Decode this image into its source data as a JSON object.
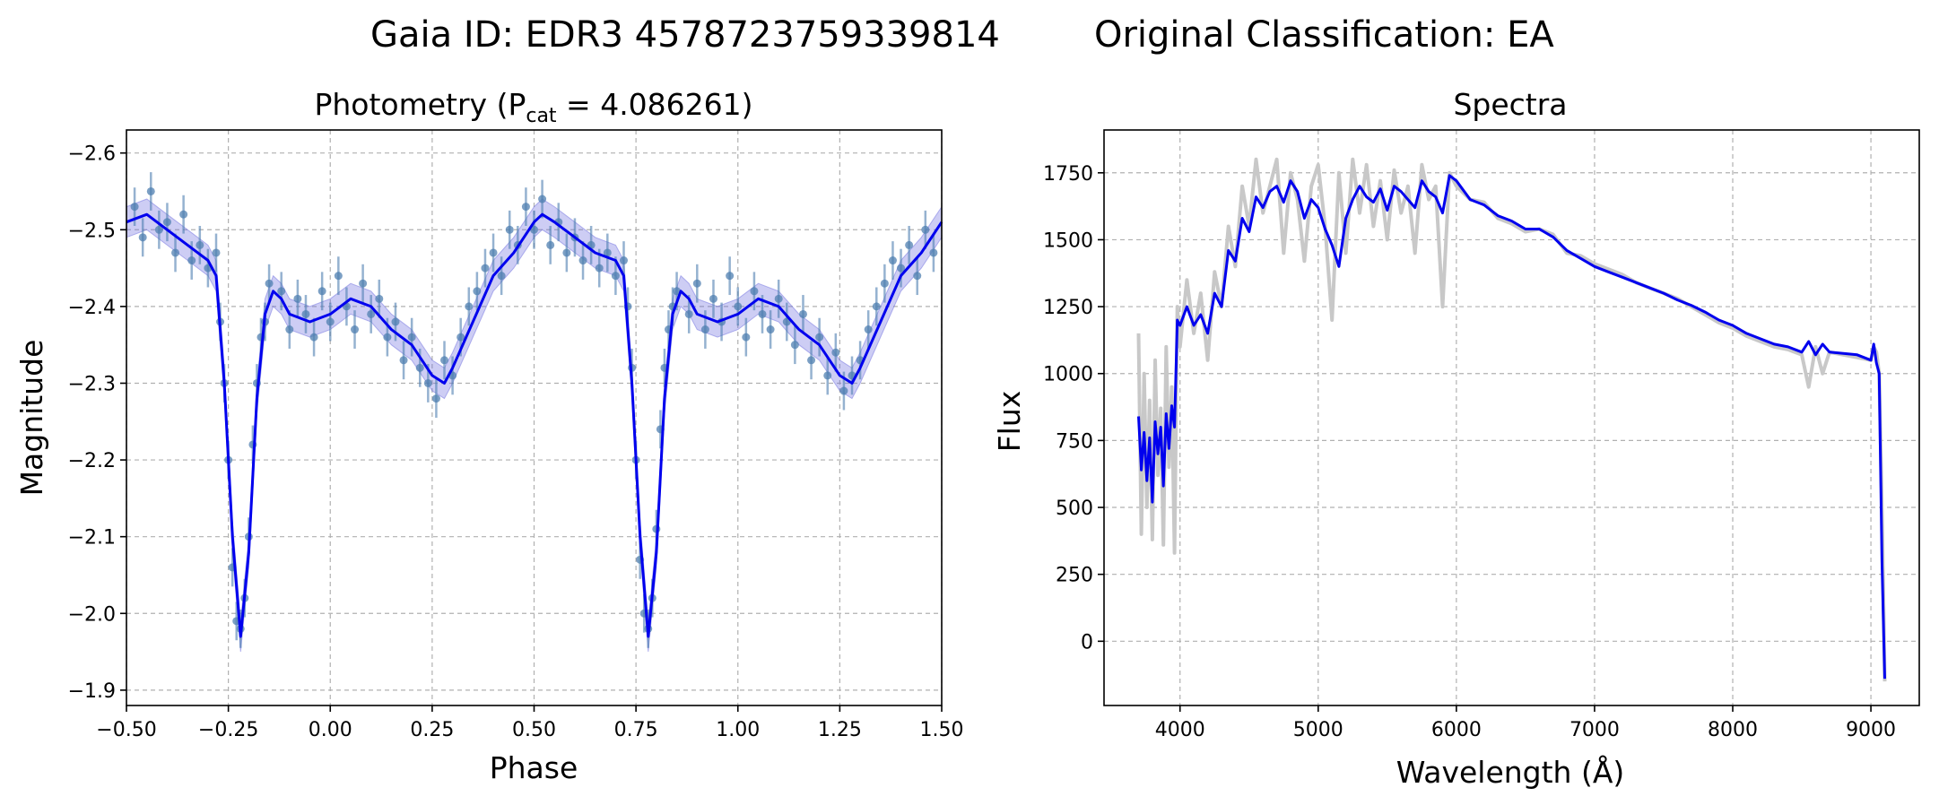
{
  "figure": {
    "title_id_label": "Gaia ID: EDR3 4578723759339814",
    "title_class_label": "Original Classification: EA"
  },
  "chart_data": [
    {
      "type": "scatter",
      "title_prefix": "Photometry (P",
      "title_sub": "cat",
      "title_suffix": " = 4.086261)",
      "xlabel": "Phase",
      "ylabel": "Magnitude",
      "xlim": [
        -0.5,
        1.5
      ],
      "ylim": [
        -2.63,
        -1.88
      ],
      "y_inverted": true,
      "grid": true,
      "xticks": [
        -0.5,
        -0.25,
        0.0,
        0.25,
        0.5,
        0.75,
        1.0,
        1.25,
        1.5
      ],
      "xtick_labels": [
        "−0.50",
        "−0.25",
        "0.00",
        "0.25",
        "0.50",
        "0.75",
        "1.00",
        "1.25",
        "1.50"
      ],
      "yticks": [
        -2.6,
        -2.5,
        -2.4,
        -2.3,
        -2.2,
        -2.1,
        -2.0,
        -1.9
      ],
      "ytick_labels": [
        "−2.6",
        "−2.5",
        "−2.4",
        "−2.3",
        "−2.2",
        "−2.1",
        "−2.0",
        "−1.9"
      ],
      "series": [
        {
          "kind": "model-curve",
          "color": "#0000ee",
          "band_color": "#7070e0",
          "band_halfwidth": 0.02,
          "x": [
            -0.5,
            -0.45,
            -0.4,
            -0.35,
            -0.3,
            -0.28,
            -0.26,
            -0.24,
            -0.22,
            -0.2,
            -0.18,
            -0.16,
            -0.14,
            -0.12,
            -0.1,
            -0.05,
            0.0,
            0.05,
            0.1,
            0.15,
            0.2,
            0.25,
            0.28,
            0.3,
            0.35,
            0.4,
            0.45,
            0.5,
            0.52,
            0.55,
            0.6,
            0.65,
            0.7,
            0.72,
            0.74,
            0.76,
            0.78,
            0.8,
            0.82,
            0.84,
            0.86,
            0.88,
            0.9,
            0.95,
            1.0,
            1.05,
            1.1,
            1.15,
            1.2,
            1.25,
            1.28,
            1.3,
            1.35,
            1.4,
            1.45,
            1.5
          ],
          "y": [
            -2.51,
            -2.52,
            -2.5,
            -2.48,
            -2.46,
            -2.44,
            -2.3,
            -2.1,
            -1.97,
            -2.08,
            -2.28,
            -2.39,
            -2.42,
            -2.41,
            -2.39,
            -2.38,
            -2.39,
            -2.41,
            -2.4,
            -2.37,
            -2.35,
            -2.31,
            -2.3,
            -2.32,
            -2.38,
            -2.44,
            -2.47,
            -2.51,
            -2.52,
            -2.51,
            -2.49,
            -2.47,
            -2.46,
            -2.44,
            -2.3,
            -2.1,
            -1.97,
            -2.08,
            -2.28,
            -2.39,
            -2.42,
            -2.41,
            -2.39,
            -2.38,
            -2.39,
            -2.41,
            -2.4,
            -2.37,
            -2.35,
            -2.31,
            -2.3,
            -2.32,
            -2.38,
            -2.44,
            -2.47,
            -2.51
          ]
        },
        {
          "kind": "observations",
          "color": "#4f7fb0",
          "x": [
            -0.48,
            -0.46,
            -0.44,
            -0.42,
            -0.4,
            -0.38,
            -0.36,
            -0.34,
            -0.32,
            -0.3,
            -0.28,
            -0.27,
            -0.26,
            -0.25,
            -0.24,
            -0.23,
            -0.22,
            -0.21,
            -0.2,
            -0.19,
            -0.18,
            -0.17,
            -0.16,
            -0.15,
            -0.12,
            -0.1,
            -0.08,
            -0.06,
            -0.04,
            -0.02,
            0.0,
            0.02,
            0.04,
            0.06,
            0.08,
            0.1,
            0.12,
            0.14,
            0.16,
            0.18,
            0.2,
            0.22,
            0.24,
            0.26,
            0.28,
            0.3,
            0.32,
            0.34,
            0.36,
            0.38,
            0.4,
            0.42,
            0.44,
            0.46,
            0.48,
            0.5,
            0.52,
            0.54,
            0.56,
            0.58,
            0.6,
            0.62,
            0.64,
            0.66,
            0.68,
            0.7,
            0.72,
            0.73,
            0.74,
            0.75,
            0.76,
            0.77,
            0.78,
            0.79,
            0.8,
            0.81,
            0.82,
            0.83,
            0.84,
            0.85,
            0.88,
            0.9,
            0.92,
            0.94,
            0.96,
            0.98,
            1.0,
            1.02,
            1.04,
            1.06,
            1.08,
            1.1,
            1.12,
            1.14,
            1.16,
            1.18,
            1.2,
            1.22,
            1.24,
            1.26,
            1.28,
            1.3,
            1.32,
            1.34,
            1.36,
            1.38,
            1.4,
            1.42,
            1.44,
            1.46,
            1.48
          ],
          "y": [
            -2.53,
            -2.49,
            -2.55,
            -2.5,
            -2.51,
            -2.47,
            -2.52,
            -2.46,
            -2.48,
            -2.45,
            -2.47,
            -2.38,
            -2.3,
            -2.2,
            -2.06,
            -1.99,
            -1.98,
            -2.02,
            -2.1,
            -2.22,
            -2.3,
            -2.36,
            -2.38,
            -2.43,
            -2.42,
            -2.37,
            -2.41,
            -2.39,
            -2.36,
            -2.42,
            -2.38,
            -2.44,
            -2.4,
            -2.37,
            -2.43,
            -2.39,
            -2.41,
            -2.36,
            -2.38,
            -2.33,
            -2.36,
            -2.32,
            -2.3,
            -2.28,
            -2.33,
            -2.31,
            -2.36,
            -2.4,
            -2.42,
            -2.45,
            -2.47,
            -2.44,
            -2.5,
            -2.48,
            -2.53,
            -2.5,
            -2.54,
            -2.48,
            -2.51,
            -2.47,
            -2.49,
            -2.46,
            -2.48,
            -2.45,
            -2.47,
            -2.44,
            -2.46,
            -2.4,
            -2.32,
            -2.2,
            -2.07,
            -2.0,
            -1.98,
            -2.02,
            -2.11,
            -2.24,
            -2.32,
            -2.37,
            -2.4,
            -2.42,
            -2.39,
            -2.43,
            -2.37,
            -2.41,
            -2.38,
            -2.44,
            -2.4,
            -2.36,
            -2.42,
            -2.39,
            -2.37,
            -2.41,
            -2.38,
            -2.35,
            -2.39,
            -2.33,
            -2.36,
            -2.31,
            -2.34,
            -2.29,
            -2.31,
            -2.33,
            -2.37,
            -2.4,
            -2.43,
            -2.46,
            -2.45,
            -2.48,
            -2.44,
            -2.5,
            -2.47
          ],
          "yerr": 0.025
        }
      ]
    },
    {
      "type": "line",
      "title": "Spectra",
      "xlabel": "Wavelength (Å)",
      "ylabel": "Flux",
      "xlim": [
        3450,
        9350
      ],
      "ylim": [
        -240,
        1910
      ],
      "grid": true,
      "xticks": [
        4000,
        5000,
        6000,
        7000,
        8000,
        9000
      ],
      "xtick_labels": [
        "4000",
        "5000",
        "6000",
        "7000",
        "8000",
        "9000"
      ],
      "yticks": [
        0,
        250,
        500,
        750,
        1000,
        1250,
        1500,
        1750
      ],
      "ytick_labels": [
        "0",
        "250",
        "500",
        "750",
        "1000",
        "1250",
        "1500",
        "1750"
      ],
      "series": [
        {
          "kind": "raw",
          "color": "#c8c8c8",
          "x": [
            3700,
            3720,
            3740,
            3760,
            3780,
            3800,
            3820,
            3840,
            3860,
            3880,
            3900,
            3920,
            3940,
            3960,
            3980,
            4000,
            4050,
            4100,
            4150,
            4200,
            4250,
            4300,
            4350,
            4400,
            4450,
            4500,
            4550,
            4600,
            4650,
            4700,
            4750,
            4800,
            4850,
            4900,
            4950,
            5000,
            5050,
            5100,
            5150,
            5200,
            5250,
            5300,
            5350,
            5400,
            5450,
            5500,
            5550,
            5600,
            5650,
            5700,
            5750,
            5800,
            5850,
            5900,
            5950,
            6000,
            6100,
            6200,
            6300,
            6400,
            6500,
            6600,
            6700,
            6800,
            6900,
            7000,
            7100,
            7200,
            7300,
            7400,
            7500,
            7600,
            7700,
            7800,
            7900,
            8000,
            8100,
            8200,
            8300,
            8400,
            8500,
            8550,
            8600,
            8650,
            8700,
            8800,
            8900,
            9000,
            9020,
            9040,
            9060,
            9080,
            9100
          ],
          "y": [
            1150,
            400,
            1000,
            500,
            900,
            380,
            1050,
            620,
            870,
            360,
            1100,
            650,
            950,
            330,
            1250,
            1100,
            1350,
            1150,
            1300,
            1050,
            1380,
            1250,
            1550,
            1400,
            1700,
            1550,
            1800,
            1600,
            1700,
            1800,
            1450,
            1750,
            1650,
            1420,
            1700,
            1780,
            1550,
            1200,
            1750,
            1450,
            1800,
            1600,
            1780,
            1550,
            1720,
            1500,
            1760,
            1600,
            1700,
            1450,
            1780,
            1650,
            1700,
            1250,
            1750,
            1700,
            1650,
            1640,
            1580,
            1560,
            1530,
            1540,
            1520,
            1450,
            1440,
            1410,
            1390,
            1370,
            1340,
            1320,
            1300,
            1280,
            1250,
            1220,
            1190,
            1170,
            1140,
            1120,
            1100,
            1090,
            1070,
            950,
            1100,
            1000,
            1080,
            1070,
            1060,
            1050,
            1100,
            1080,
            1000,
            500,
            -150
          ]
        },
        {
          "kind": "smoothed",
          "color": "#0000ee",
          "x": [
            3700,
            3720,
            3740,
            3760,
            3780,
            3800,
            3820,
            3840,
            3860,
            3880,
            3900,
            3920,
            3940,
            3960,
            3980,
            4000,
            4050,
            4100,
            4150,
            4200,
            4250,
            4300,
            4350,
            4400,
            4450,
            4500,
            4550,
            4600,
            4650,
            4700,
            4750,
            4800,
            4850,
            4900,
            4950,
            5000,
            5050,
            5100,
            5150,
            5200,
            5250,
            5300,
            5350,
            5400,
            5450,
            5500,
            5550,
            5600,
            5650,
            5700,
            5750,
            5800,
            5850,
            5900,
            5950,
            6000,
            6100,
            6200,
            6300,
            6400,
            6500,
            6600,
            6700,
            6800,
            6900,
            7000,
            7100,
            7200,
            7300,
            7400,
            7500,
            7600,
            7700,
            7800,
            7900,
            8000,
            8100,
            8200,
            8300,
            8400,
            8500,
            8550,
            8600,
            8650,
            8700,
            8800,
            8900,
            9000,
            9020,
            9040,
            9060,
            9080,
            9100
          ],
          "y": [
            840,
            640,
            780,
            600,
            760,
            520,
            820,
            700,
            800,
            580,
            850,
            720,
            880,
            800,
            1200,
            1180,
            1250,
            1180,
            1220,
            1150,
            1300,
            1250,
            1460,
            1420,
            1580,
            1530,
            1660,
            1620,
            1680,
            1700,
            1640,
            1720,
            1680,
            1580,
            1650,
            1620,
            1540,
            1480,
            1400,
            1580,
            1650,
            1700,
            1660,
            1640,
            1690,
            1610,
            1700,
            1680,
            1650,
            1620,
            1720,
            1680,
            1660,
            1600,
            1740,
            1720,
            1650,
            1630,
            1590,
            1570,
            1540,
            1540,
            1510,
            1460,
            1430,
            1400,
            1380,
            1360,
            1340,
            1320,
            1300,
            1275,
            1255,
            1230,
            1200,
            1180,
            1150,
            1130,
            1110,
            1100,
            1080,
            1120,
            1070,
            1110,
            1080,
            1075,
            1070,
            1050,
            1110,
            1040,
            1000,
            300,
            -140
          ]
        }
      ]
    }
  ]
}
